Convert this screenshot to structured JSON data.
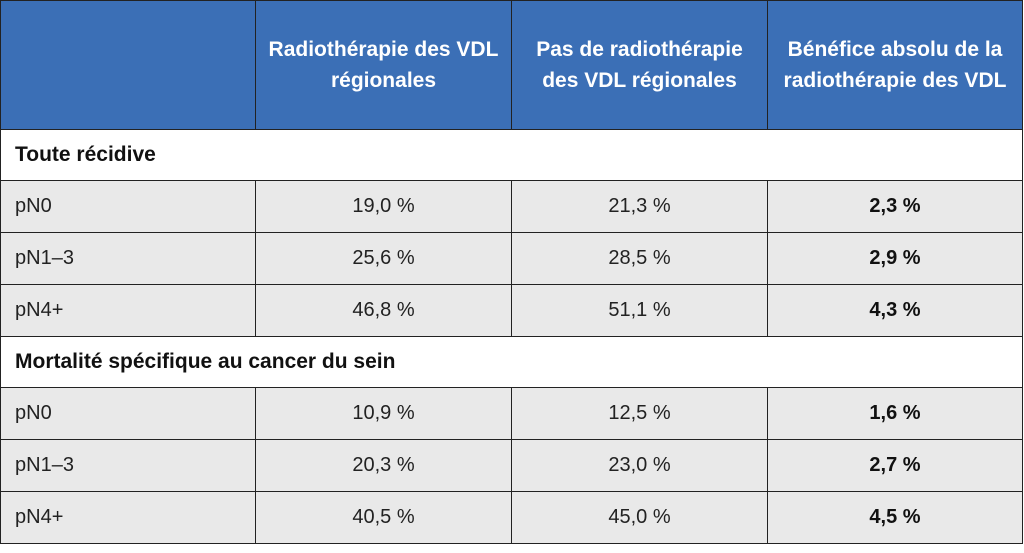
{
  "header": {
    "col_blank": "",
    "col1": "Radiothérapie des VDL régionales",
    "col2": "Pas de radiothérapie des VDL régionales",
    "col3": "Bénéfice absolu de la radiothérapie des VDL"
  },
  "sections": [
    {
      "title": "Toute récidive",
      "rows": [
        {
          "label": "pN0",
          "radio": "19,0 %",
          "no_radio": "21,3 %",
          "benefit": "2,3 %"
        },
        {
          "label": "pN1–3",
          "radio": "25,6 %",
          "no_radio": "28,5 %",
          "benefit": "2,9 %"
        },
        {
          "label": "pN4+",
          "radio": "46,8 %",
          "no_radio": "51,1 %",
          "benefit": "4,3 %"
        }
      ]
    },
    {
      "title": "Mortalité spécifique au cancer du sein",
      "rows": [
        {
          "label": "pN0",
          "radio": "10,9 %",
          "no_radio": "12,5 %",
          "benefit": "1,6 %"
        },
        {
          "label": "pN1–3",
          "radio": "20,3 %",
          "no_radio": "23,0 %",
          "benefit": "2,7 %"
        },
        {
          "label": "pN4+",
          "radio": "40,5 %",
          "no_radio": "45,0 %",
          "benefit": "4,5 %"
        }
      ]
    }
  ],
  "colors": {
    "header_bg": "#3b6fb6",
    "row_bg": "#e9e9e9",
    "border": "#222222"
  }
}
